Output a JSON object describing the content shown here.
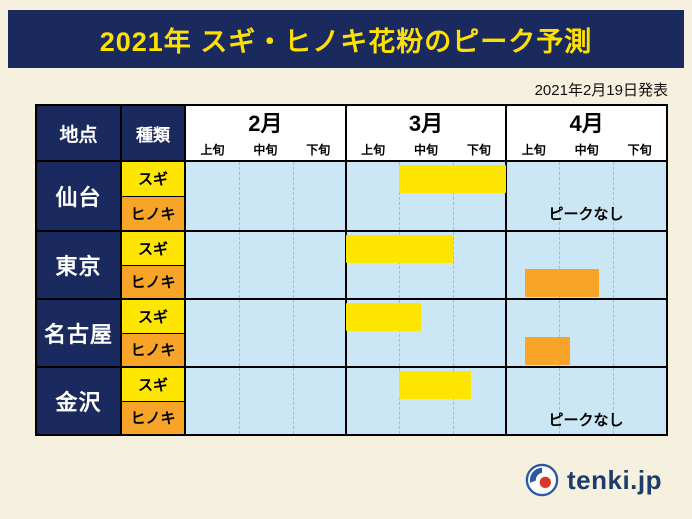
{
  "header": {
    "title": "2021年 スギ・ヒノキ花粉のピーク予測"
  },
  "announcement": "2021年2月19日発表",
  "chart_data": {
    "type": "bar",
    "subtype": "horizontal-range-gantt-peak-forecast",
    "title": "2021年 スギ・ヒノキ花粉のピーク予測",
    "corner": {
      "location": "地点",
      "type": "種類"
    },
    "timeline": {
      "months": [
        "2月",
        "3月",
        "4月"
      ],
      "periods": [
        "上旬",
        "中旬",
        "下旬"
      ],
      "total_units": 9,
      "unit_note": "1 unit = 1旬 (10-day period); axis spans 2月上旬 (0) to 4月下旬 (9)"
    },
    "rows": [
      {
        "city": "仙台",
        "entries": [
          {
            "species": "スギ",
            "start": 4,
            "end": 6,
            "range_label": "3月中旬〜3月下旬"
          },
          {
            "species": "ヒノキ",
            "start": null,
            "end": null,
            "note": "ピークなし"
          }
        ]
      },
      {
        "city": "東京",
        "entries": [
          {
            "species": "スギ",
            "start": 3,
            "end": 5,
            "range_label": "3月上旬〜3月中旬"
          },
          {
            "species": "ヒノキ",
            "start": 6.35,
            "end": 7.75,
            "range_label": "4月上旬〜4月中旬"
          }
        ]
      },
      {
        "city": "名古屋",
        "entries": [
          {
            "species": "スギ",
            "start": 3,
            "end": 4.4,
            "range_label": "3月上旬〜3月中旬"
          },
          {
            "species": "ヒノキ",
            "start": 6.35,
            "end": 7.2,
            "range_label": "4月上旬〜4月中旬"
          }
        ]
      },
      {
        "city": "金沢",
        "entries": [
          {
            "species": "スギ",
            "start": 4,
            "end": 5.35,
            "range_label": "3月中旬〜3月下旬"
          },
          {
            "species": "ヒノキ",
            "start": null,
            "end": null,
            "note": "ピークなし"
          }
        ]
      }
    ],
    "colors": {
      "sugi_bar": "#ffe600",
      "hinoki_bar": "#f7a428",
      "timeline_bg": "#cbe6f4",
      "header_bg": "#1b2a5e",
      "title_text": "#ffe100",
      "city_cell_bg": "#1b2a5e",
      "page_bg": "#f6f0df"
    }
  },
  "footer": {
    "logo_text": "tenki.jp"
  }
}
